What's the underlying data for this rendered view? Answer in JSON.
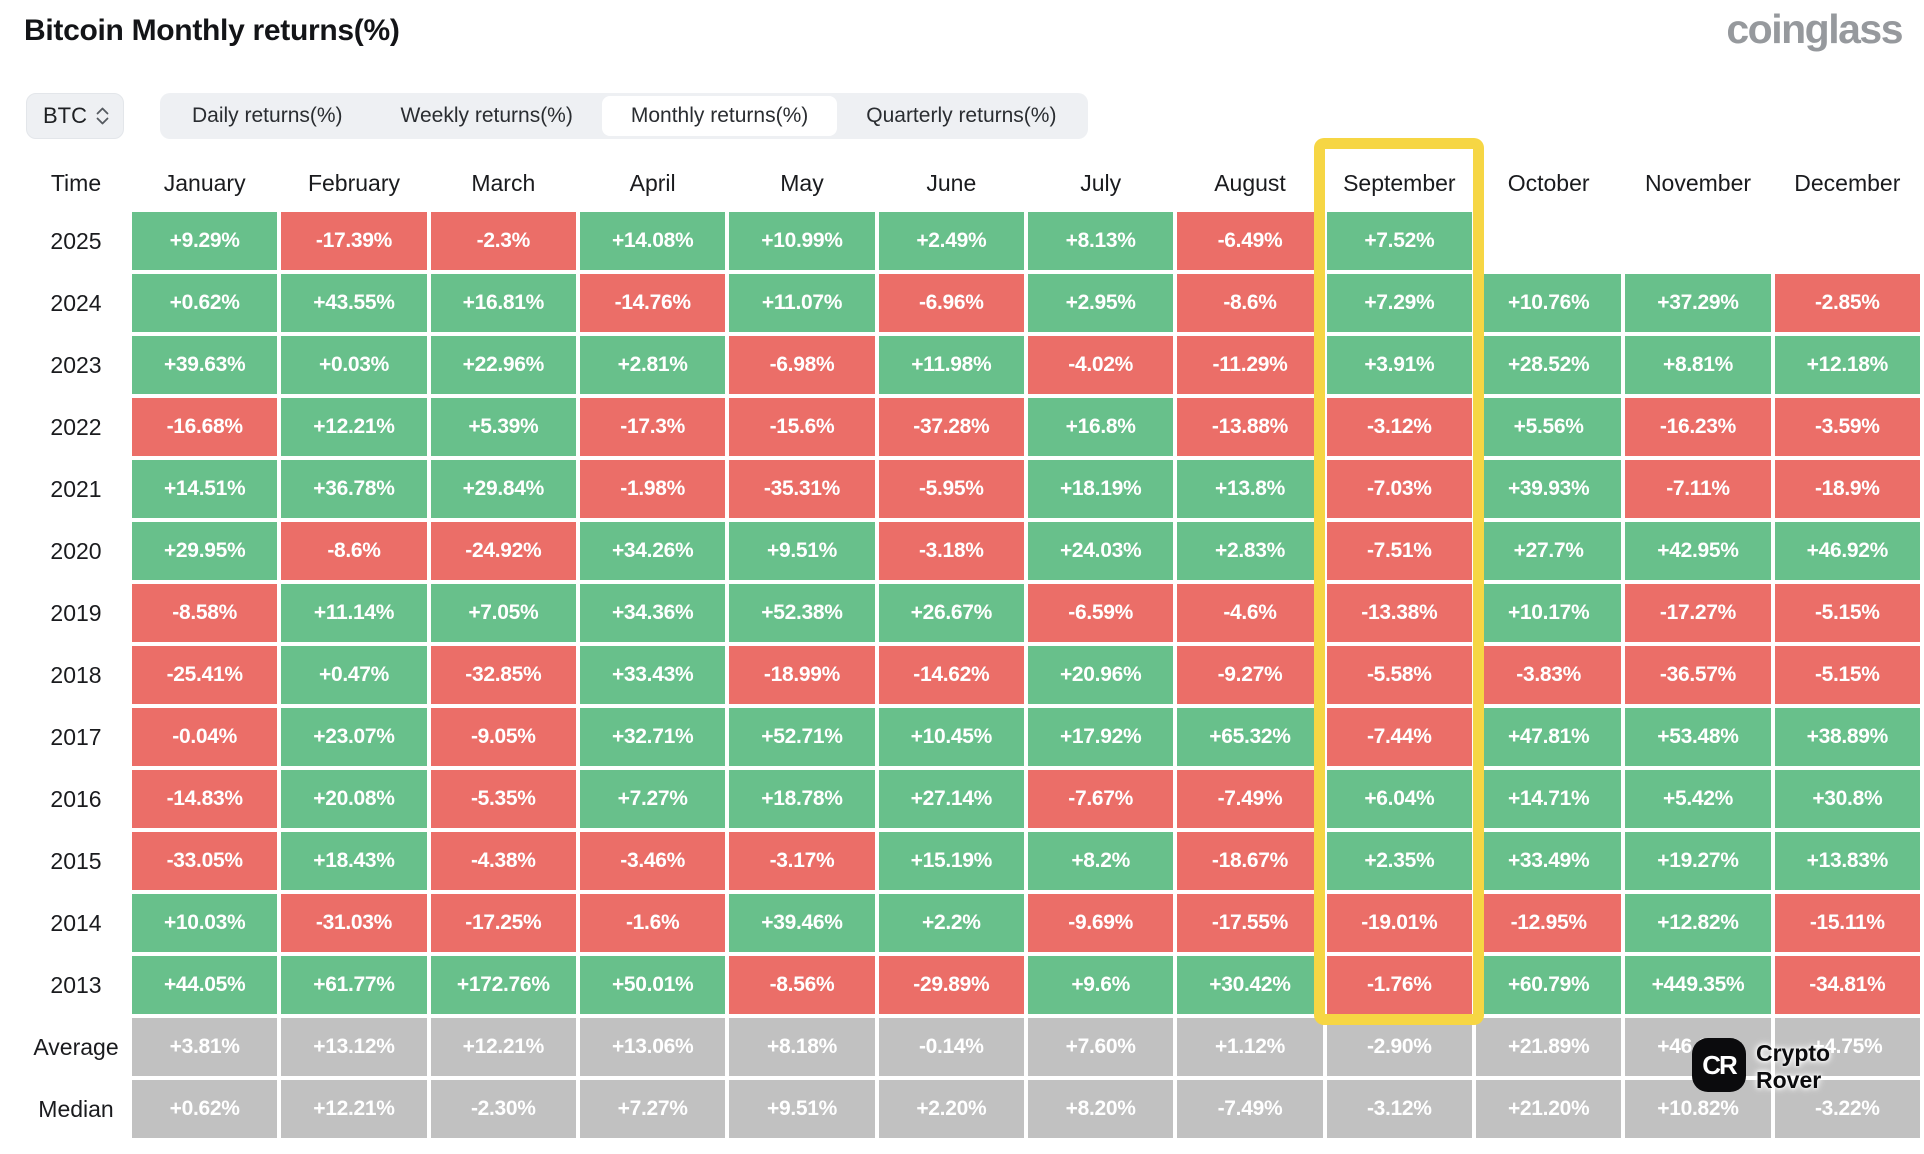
{
  "page": {
    "title": "Bitcoin Monthly returns(%)",
    "brand": "coinglass"
  },
  "controls": {
    "symbol_select": {
      "label": "BTC",
      "icon": "sort-arrows-icon"
    },
    "tabs": [
      {
        "label": "Daily returns(%)",
        "active": false
      },
      {
        "label": "Weekly returns(%)",
        "active": false
      },
      {
        "label": "Monthly returns(%)",
        "active": true
      },
      {
        "label": "Quarterly returns(%)",
        "active": false
      }
    ]
  },
  "colors": {
    "positive": "#68c08b",
    "negative": "#eb6e68",
    "neutral": "#c1c1c1",
    "highlight": "#f6d644"
  },
  "watermark": {
    "icon_text": "CR",
    "line1": "Crypto",
    "line2": "Rover"
  },
  "chart_data": {
    "type": "heatmap",
    "title": "Bitcoin Monthly returns(%)",
    "columns": [
      "Time",
      "January",
      "February",
      "March",
      "April",
      "May",
      "June",
      "July",
      "August",
      "September",
      "October",
      "November",
      "December"
    ],
    "highlighted_column": "September",
    "highlight_rows_spanned": "2025-2013",
    "rows": [
      {
        "label": "2025",
        "type": "year",
        "values": [
          "+9.29%",
          "-17.39%",
          "-2.3%",
          "+14.08%",
          "+10.99%",
          "+2.49%",
          "+8.13%",
          "-6.49%",
          "+7.52%",
          "",
          "",
          ""
        ]
      },
      {
        "label": "2024",
        "type": "year",
        "values": [
          "+0.62%",
          "+43.55%",
          "+16.81%",
          "-14.76%",
          "+11.07%",
          "-6.96%",
          "+2.95%",
          "-8.6%",
          "+7.29%",
          "+10.76%",
          "+37.29%",
          "-2.85%"
        ]
      },
      {
        "label": "2023",
        "type": "year",
        "values": [
          "+39.63%",
          "+0.03%",
          "+22.96%",
          "+2.81%",
          "-6.98%",
          "+11.98%",
          "-4.02%",
          "-11.29%",
          "+3.91%",
          "+28.52%",
          "+8.81%",
          "+12.18%"
        ]
      },
      {
        "label": "2022",
        "type": "year",
        "values": [
          "-16.68%",
          "+12.21%",
          "+5.39%",
          "-17.3%",
          "-15.6%",
          "-37.28%",
          "+16.8%",
          "-13.88%",
          "-3.12%",
          "+5.56%",
          "-16.23%",
          "-3.59%"
        ]
      },
      {
        "label": "2021",
        "type": "year",
        "values": [
          "+14.51%",
          "+36.78%",
          "+29.84%",
          "-1.98%",
          "-35.31%",
          "-5.95%",
          "+18.19%",
          "+13.8%",
          "-7.03%",
          "+39.93%",
          "-7.11%",
          "-18.9%"
        ]
      },
      {
        "label": "2020",
        "type": "year",
        "values": [
          "+29.95%",
          "-8.6%",
          "-24.92%",
          "+34.26%",
          "+9.51%",
          "-3.18%",
          "+24.03%",
          "+2.83%",
          "-7.51%",
          "+27.7%",
          "+42.95%",
          "+46.92%"
        ]
      },
      {
        "label": "2019",
        "type": "year",
        "values": [
          "-8.58%",
          "+11.14%",
          "+7.05%",
          "+34.36%",
          "+52.38%",
          "+26.67%",
          "-6.59%",
          "-4.6%",
          "-13.38%",
          "+10.17%",
          "-17.27%",
          "-5.15%"
        ]
      },
      {
        "label": "2018",
        "type": "year",
        "values": [
          "-25.41%",
          "+0.47%",
          "-32.85%",
          "+33.43%",
          "-18.99%",
          "-14.62%",
          "+20.96%",
          "-9.27%",
          "-5.58%",
          "-3.83%",
          "-36.57%",
          "-5.15%"
        ]
      },
      {
        "label": "2017",
        "type": "year",
        "values": [
          "-0.04%",
          "+23.07%",
          "-9.05%",
          "+32.71%",
          "+52.71%",
          "+10.45%",
          "+17.92%",
          "+65.32%",
          "-7.44%",
          "+47.81%",
          "+53.48%",
          "+38.89%"
        ]
      },
      {
        "label": "2016",
        "type": "year",
        "values": [
          "-14.83%",
          "+20.08%",
          "-5.35%",
          "+7.27%",
          "+18.78%",
          "+27.14%",
          "-7.67%",
          "-7.49%",
          "+6.04%",
          "+14.71%",
          "+5.42%",
          "+30.8%"
        ]
      },
      {
        "label": "2015",
        "type": "year",
        "values": [
          "-33.05%",
          "+18.43%",
          "-4.38%",
          "-3.46%",
          "-3.17%",
          "+15.19%",
          "+8.2%",
          "-18.67%",
          "+2.35%",
          "+33.49%",
          "+19.27%",
          "+13.83%"
        ]
      },
      {
        "label": "2014",
        "type": "year",
        "values": [
          "+10.03%",
          "-31.03%",
          "-17.25%",
          "-1.6%",
          "+39.46%",
          "+2.2%",
          "-9.69%",
          "-17.55%",
          "-19.01%",
          "-12.95%",
          "+12.82%",
          "-15.11%"
        ]
      },
      {
        "label": "2013",
        "type": "year",
        "values": [
          "+44.05%",
          "+61.77%",
          "+172.76%",
          "+50.01%",
          "-8.56%",
          "-29.89%",
          "+9.6%",
          "+30.42%",
          "-1.76%",
          "+60.79%",
          "+449.35%",
          "-34.81%"
        ]
      },
      {
        "label": "Average",
        "type": "summary",
        "values": [
          "+3.81%",
          "+13.12%",
          "+12.21%",
          "+13.06%",
          "+8.18%",
          "-0.14%",
          "+7.60%",
          "+1.12%",
          "-2.90%",
          "+21.89%",
          "+46.02%",
          "+4.75%"
        ]
      },
      {
        "label": "Median",
        "type": "summary",
        "values": [
          "+0.62%",
          "+12.21%",
          "-2.30%",
          "+7.27%",
          "+9.51%",
          "+2.20%",
          "+8.20%",
          "-7.49%",
          "-3.12%",
          "+21.20%",
          "+10.82%",
          "-3.22%"
        ]
      }
    ]
  }
}
